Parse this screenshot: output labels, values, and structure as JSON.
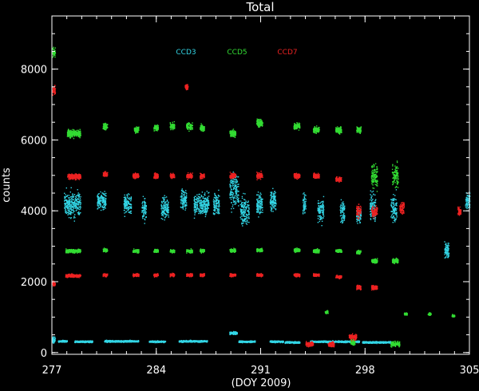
{
  "chart_data": {
    "type": "scatter",
    "title": "Total",
    "xlabel": "(DOY 2009)",
    "ylabel": "counts",
    "xlim": [
      277,
      305
    ],
    "ylim": [
      -50,
      9500
    ],
    "x_ticks": [
      277,
      284,
      291,
      298,
      305
    ],
    "y_ticks": [
      0,
      2000,
      4000,
      6000,
      8000
    ],
    "x_tick_labels": [
      "277",
      "284",
      "291",
      "298",
      "305"
    ],
    "y_tick_labels": [
      "0",
      "2000",
      "4000",
      "6000",
      "8000"
    ],
    "legend_placement": "top-center",
    "grid": false,
    "background": "#000000",
    "axis_color": "#ffffff",
    "series": [
      {
        "name": "CCD3",
        "color": "#33d6e6",
        "clusters": [
          {
            "x0": 277.4,
            "x1": 278.0,
            "y": 330,
            "spread": 40
          },
          {
            "x0": 278.5,
            "x1": 279.7,
            "y": 320,
            "spread": 40
          },
          {
            "x0": 280.5,
            "x1": 282.8,
            "y": 330,
            "spread": 40
          },
          {
            "x0": 283.5,
            "x1": 284.6,
            "y": 320,
            "spread": 40
          },
          {
            "x0": 285.5,
            "x1": 287.4,
            "y": 330,
            "spread": 40
          },
          {
            "x0": 288.9,
            "x1": 289.4,
            "y": 560,
            "spread": 60
          },
          {
            "x0": 289.5,
            "x1": 290.6,
            "y": 320,
            "spread": 40
          },
          {
            "x0": 291.6,
            "x1": 292.5,
            "y": 320,
            "spread": 40
          },
          {
            "x0": 292.6,
            "x1": 293.6,
            "y": 300,
            "spread": 40
          },
          {
            "x0": 294.3,
            "x1": 297.6,
            "y": 320,
            "spread": 40
          },
          {
            "x0": 297.8,
            "x1": 299.7,
            "y": 300,
            "spread": 40
          },
          {
            "x0": 277.0,
            "x1": 277.2,
            "y": 380,
            "spread": 150
          },
          {
            "x0": 277.8,
            "x1": 278.9,
            "y": 4200,
            "spread": 600
          },
          {
            "x0": 280.0,
            "x1": 280.6,
            "y": 4300,
            "spread": 400
          },
          {
            "x0": 281.8,
            "x1": 282.3,
            "y": 4200,
            "spread": 500
          },
          {
            "x0": 283.0,
            "x1": 283.3,
            "y": 4100,
            "spread": 500
          },
          {
            "x0": 284.3,
            "x1": 284.8,
            "y": 4100,
            "spread": 500
          },
          {
            "x0": 285.6,
            "x1": 286.0,
            "y": 4300,
            "spread": 500
          },
          {
            "x0": 286.5,
            "x1": 287.5,
            "y": 4200,
            "spread": 500
          },
          {
            "x0": 287.8,
            "x1": 288.2,
            "y": 4200,
            "spread": 500
          },
          {
            "x0": 288.9,
            "x1": 289.5,
            "y": 4600,
            "spread": 800
          },
          {
            "x0": 289.6,
            "x1": 290.2,
            "y": 4000,
            "spread": 700
          },
          {
            "x0": 290.7,
            "x1": 291.1,
            "y": 4200,
            "spread": 500
          },
          {
            "x0": 291.6,
            "x1": 292.0,
            "y": 4300,
            "spread": 500
          },
          {
            "x0": 293.8,
            "x1": 294.0,
            "y": 4200,
            "spread": 400
          },
          {
            "x0": 294.8,
            "x1": 295.2,
            "y": 4000,
            "spread": 500
          },
          {
            "x0": 296.3,
            "x1": 296.6,
            "y": 4000,
            "spread": 500
          },
          {
            "x0": 297.4,
            "x1": 297.7,
            "y": 3900,
            "spread": 400
          },
          {
            "x0": 298.3,
            "x1": 298.7,
            "y": 4100,
            "spread": 600
          },
          {
            "x0": 299.7,
            "x1": 300.1,
            "y": 4100,
            "spread": 700
          },
          {
            "x0": 303.3,
            "x1": 303.6,
            "y": 2900,
            "spread": 400
          },
          {
            "x0": 304.7,
            "x1": 305.0,
            "y": 4300,
            "spread": 400
          }
        ]
      },
      {
        "name": "CCD5",
        "color": "#33dd33",
        "clusters": [
          {
            "x0": 277.0,
            "x1": 277.2,
            "y": 8500,
            "spread": 200
          },
          {
            "x0": 278.0,
            "x1": 278.9,
            "y": 6200,
            "spread": 180
          },
          {
            "x0": 280.4,
            "x1": 280.7,
            "y": 6400,
            "spread": 150
          },
          {
            "x0": 282.5,
            "x1": 282.8,
            "y": 6300,
            "spread": 150
          },
          {
            "x0": 283.8,
            "x1": 284.1,
            "y": 6350,
            "spread": 150
          },
          {
            "x0": 284.9,
            "x1": 285.2,
            "y": 6400,
            "spread": 150
          },
          {
            "x0": 286.0,
            "x1": 286.4,
            "y": 6400,
            "spread": 150
          },
          {
            "x0": 286.9,
            "x1": 287.2,
            "y": 6350,
            "spread": 150
          },
          {
            "x0": 288.9,
            "x1": 289.3,
            "y": 6200,
            "spread": 150
          },
          {
            "x0": 290.7,
            "x1": 291.1,
            "y": 6500,
            "spread": 200
          },
          {
            "x0": 293.2,
            "x1": 293.6,
            "y": 6400,
            "spread": 150
          },
          {
            "x0": 294.5,
            "x1": 294.9,
            "y": 6300,
            "spread": 150
          },
          {
            "x0": 296.0,
            "x1": 296.4,
            "y": 6300,
            "spread": 150
          },
          {
            "x0": 297.4,
            "x1": 297.7,
            "y": 6300,
            "spread": 150
          },
          {
            "x0": 298.4,
            "x1": 298.8,
            "y": 5000,
            "spread": 500
          },
          {
            "x0": 299.8,
            "x1": 300.2,
            "y": 5000,
            "spread": 500
          },
          {
            "x0": 277.9,
            "x1": 278.9,
            "y": 2880,
            "spread": 80
          },
          {
            "x0": 280.4,
            "x1": 280.7,
            "y": 2900,
            "spread": 80
          },
          {
            "x0": 282.4,
            "x1": 282.8,
            "y": 2880,
            "spread": 80
          },
          {
            "x0": 283.8,
            "x1": 284.1,
            "y": 2880,
            "spread": 80
          },
          {
            "x0": 284.9,
            "x1": 285.2,
            "y": 2880,
            "spread": 80
          },
          {
            "x0": 286.0,
            "x1": 286.4,
            "y": 2880,
            "spread": 80
          },
          {
            "x0": 286.9,
            "x1": 287.2,
            "y": 2880,
            "spread": 80
          },
          {
            "x0": 288.9,
            "x1": 289.3,
            "y": 2900,
            "spread": 80
          },
          {
            "x0": 290.7,
            "x1": 291.1,
            "y": 2900,
            "spread": 80
          },
          {
            "x0": 293.2,
            "x1": 293.6,
            "y": 2900,
            "spread": 80
          },
          {
            "x0": 294.5,
            "x1": 294.9,
            "y": 2880,
            "spread": 80
          },
          {
            "x0": 296.0,
            "x1": 296.4,
            "y": 2880,
            "spread": 80
          },
          {
            "x0": 297.4,
            "x1": 297.7,
            "y": 2850,
            "spread": 80
          },
          {
            "x0": 298.4,
            "x1": 298.8,
            "y": 2600,
            "spread": 100
          },
          {
            "x0": 299.8,
            "x1": 300.2,
            "y": 2600,
            "spread": 100
          },
          {
            "x0": 295.3,
            "x1": 295.5,
            "y": 1150,
            "spread": 60
          },
          {
            "x0": 300.6,
            "x1": 300.8,
            "y": 1100,
            "spread": 60
          },
          {
            "x0": 302.2,
            "x1": 302.4,
            "y": 1100,
            "spread": 60
          },
          {
            "x0": 303.8,
            "x1": 304.0,
            "y": 1050,
            "spread": 60
          },
          {
            "x0": 299.7,
            "x1": 300.3,
            "y": 250,
            "spread": 120
          },
          {
            "x0": 297.0,
            "x1": 297.3,
            "y": 300,
            "spread": 120
          }
        ]
      },
      {
        "name": "CCD7",
        "color": "#ee2222",
        "clusters": [
          {
            "x0": 277.0,
            "x1": 277.2,
            "y": 7400,
            "spread": 200
          },
          {
            "x0": 277.0,
            "x1": 277.2,
            "y": 1950,
            "spread": 100
          },
          {
            "x0": 278.0,
            "x1": 278.9,
            "y": 4980,
            "spread": 120
          },
          {
            "x0": 280.4,
            "x1": 280.7,
            "y": 5050,
            "spread": 120
          },
          {
            "x0": 282.4,
            "x1": 282.8,
            "y": 5000,
            "spread": 120
          },
          {
            "x0": 283.8,
            "x1": 284.1,
            "y": 5000,
            "spread": 120
          },
          {
            "x0": 284.9,
            "x1": 285.2,
            "y": 5000,
            "spread": 120
          },
          {
            "x0": 286.0,
            "x1": 286.4,
            "y": 5000,
            "spread": 120
          },
          {
            "x0": 286.9,
            "x1": 287.2,
            "y": 5000,
            "spread": 120
          },
          {
            "x0": 288.9,
            "x1": 289.3,
            "y": 5000,
            "spread": 120
          },
          {
            "x0": 290.7,
            "x1": 291.1,
            "y": 5000,
            "spread": 150
          },
          {
            "x0": 293.2,
            "x1": 293.6,
            "y": 5000,
            "spread": 120
          },
          {
            "x0": 294.5,
            "x1": 294.9,
            "y": 5000,
            "spread": 120
          },
          {
            "x0": 296.0,
            "x1": 296.4,
            "y": 4900,
            "spread": 120
          },
          {
            "x0": 297.4,
            "x1": 297.7,
            "y": 4000,
            "spread": 300
          },
          {
            "x0": 298.4,
            "x1": 298.8,
            "y": 4000,
            "spread": 300
          },
          {
            "x0": 277.9,
            "x1": 278.9,
            "y": 2180,
            "spread": 70
          },
          {
            "x0": 280.4,
            "x1": 280.7,
            "y": 2200,
            "spread": 70
          },
          {
            "x0": 282.4,
            "x1": 282.8,
            "y": 2200,
            "spread": 70
          },
          {
            "x0": 283.8,
            "x1": 284.1,
            "y": 2200,
            "spread": 70
          },
          {
            "x0": 284.9,
            "x1": 285.2,
            "y": 2200,
            "spread": 70
          },
          {
            "x0": 286.0,
            "x1": 286.4,
            "y": 2200,
            "spread": 70
          },
          {
            "x0": 286.9,
            "x1": 287.2,
            "y": 2200,
            "spread": 70
          },
          {
            "x0": 288.9,
            "x1": 289.3,
            "y": 2200,
            "spread": 70
          },
          {
            "x0": 290.7,
            "x1": 291.1,
            "y": 2200,
            "spread": 70
          },
          {
            "x0": 293.2,
            "x1": 293.6,
            "y": 2200,
            "spread": 70
          },
          {
            "x0": 294.5,
            "x1": 294.9,
            "y": 2200,
            "spread": 70
          },
          {
            "x0": 296.0,
            "x1": 296.4,
            "y": 2150,
            "spread": 70
          },
          {
            "x0": 297.4,
            "x1": 297.7,
            "y": 1850,
            "spread": 100
          },
          {
            "x0": 298.4,
            "x1": 298.8,
            "y": 1850,
            "spread": 100
          },
          {
            "x0": 296.9,
            "x1": 297.4,
            "y": 450,
            "spread": 120
          },
          {
            "x0": 294.0,
            "x1": 294.5,
            "y": 250,
            "spread": 120
          },
          {
            "x0": 295.5,
            "x1": 295.9,
            "y": 250,
            "spread": 120
          },
          {
            "x0": 285.9,
            "x1": 286.1,
            "y": 7500,
            "spread": 150
          },
          {
            "x0": 304.2,
            "x1": 304.4,
            "y": 4000,
            "spread": 200
          },
          {
            "x0": 300.3,
            "x1": 300.6,
            "y": 4100,
            "spread": 300
          }
        ]
      }
    ]
  }
}
